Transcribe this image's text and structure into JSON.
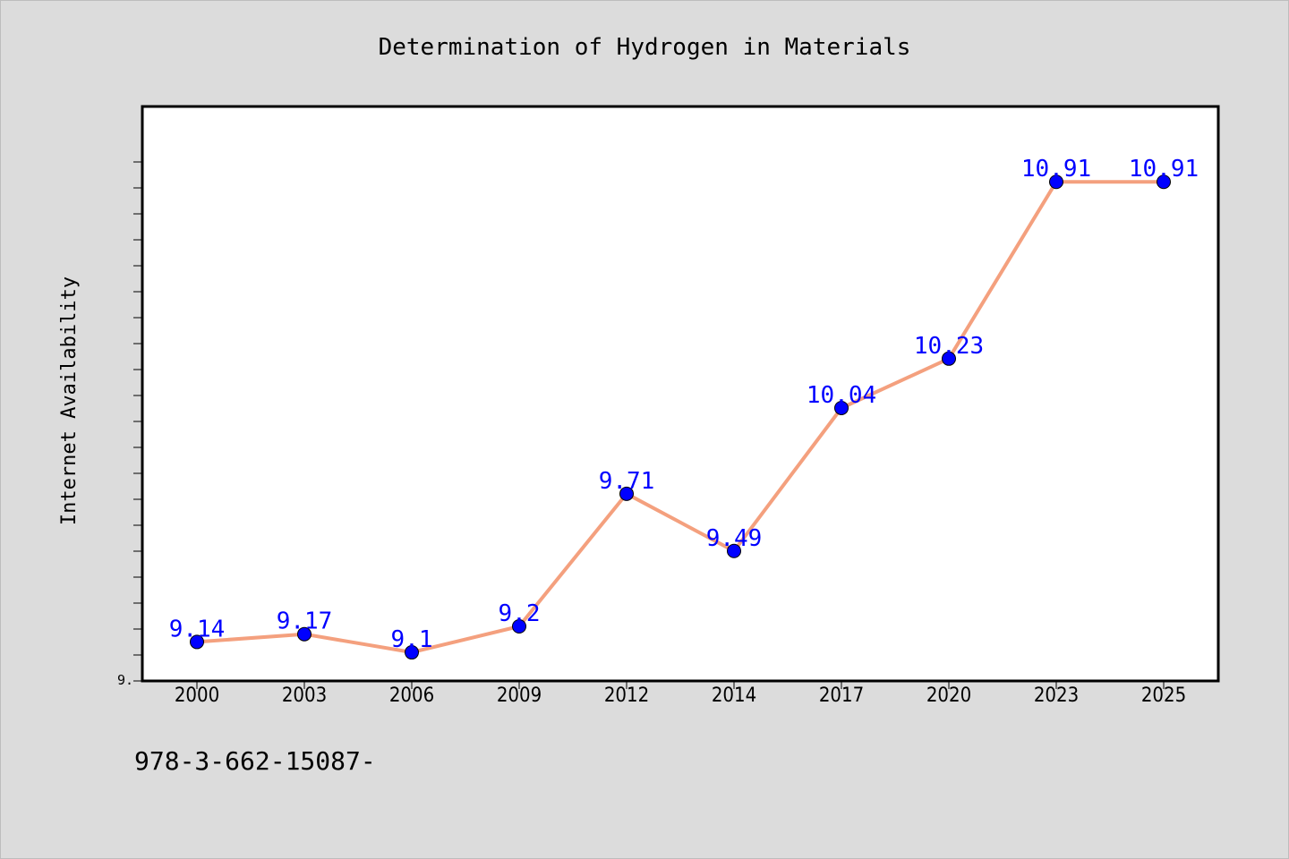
{
  "chart_data": {
    "type": "line",
    "title": "Determination of Hydrogen in Materials",
    "xlabel": "",
    "ylabel": "Internet Availability",
    "categories": [
      "2000",
      "2003",
      "2006",
      "2009",
      "2012",
      "2014",
      "2017",
      "2020",
      "2023",
      "2025"
    ],
    "series": [
      {
        "values": [
          9.14,
          9.17,
          9.1,
          9.2,
          9.71,
          9.49,
          10.04,
          10.23,
          10.91,
          10.91
        ],
        "labels": [
          "9.14",
          "9.17",
          "9.1",
          "9.2",
          "9.71",
          "9.49",
          "10.04",
          "10.23",
          "10.91",
          "10.91"
        ]
      }
    ],
    "ylim": [
      8.99,
      11.2
    ],
    "y_tick_label": "9.",
    "y_minor_tick_count": 21,
    "grid": false,
    "colors": {
      "line": "#f4a07e",
      "marker": "#0000ff",
      "data_label": "#0000ff",
      "plot_bg": "#ffffff",
      "page_bg": "#dcdcdc"
    }
  },
  "footer": {
    "text": "978-3-662-15087-"
  }
}
